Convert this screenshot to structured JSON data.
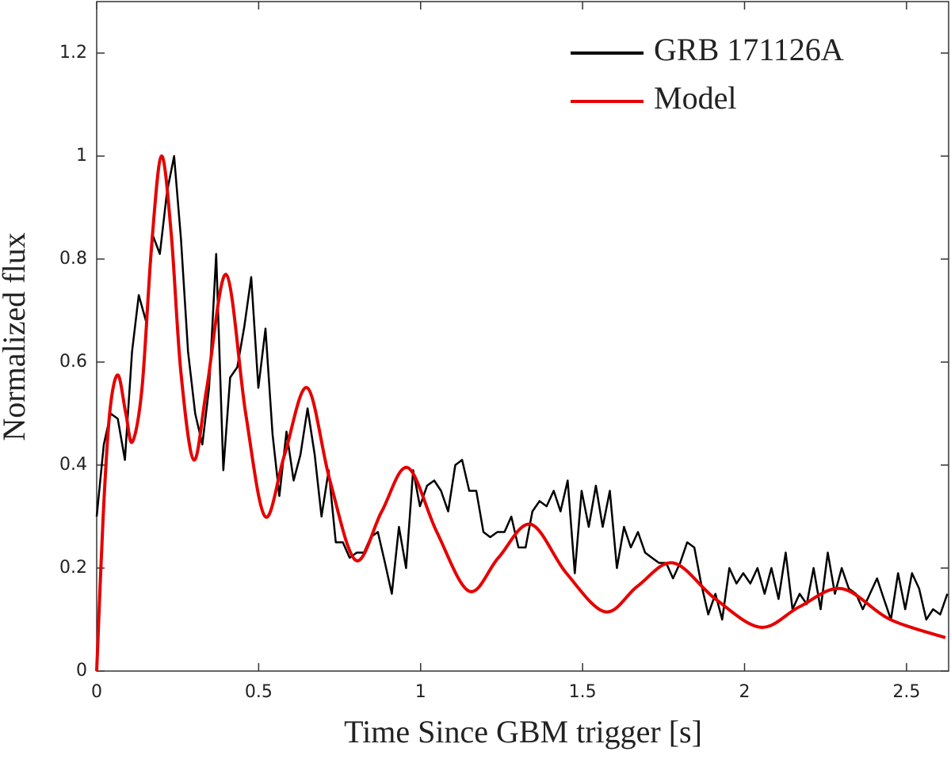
{
  "chart_data": {
    "type": "line",
    "xlabel": "Time Since GBM trigger [s]",
    "ylabel": "Normalized flux",
    "xlim": [
      0,
      2.63
    ],
    "ylim": [
      0,
      1.3
    ],
    "xticks": [
      0,
      0.5,
      1,
      1.5,
      2,
      2.5
    ],
    "yticks": [
      0,
      0.2,
      0.4,
      0.6,
      0.8,
      1,
      1.2
    ],
    "legend": "upper right",
    "series": [
      {
        "name": "GRB 171126A",
        "color": "#000000",
        "smooth": false,
        "x": [
          0,
          0.022,
          0.043,
          0.065,
          0.087,
          0.109,
          0.13,
          0.152,
          0.174,
          0.195,
          0.217,
          0.239,
          0.26,
          0.282,
          0.304,
          0.326,
          0.347,
          0.369,
          0.391,
          0.412,
          0.434,
          0.456,
          0.477,
          0.499,
          0.521,
          0.543,
          0.564,
          0.586,
          0.608,
          0.629,
          0.651,
          0.673,
          0.694,
          0.716,
          0.738,
          0.76,
          0.781,
          0.803,
          0.825,
          0.846,
          0.868,
          0.89,
          0.911,
          0.933,
          0.955,
          0.977,
          0.998,
          1.02,
          1.042,
          1.063,
          1.085,
          1.107,
          1.128,
          1.15,
          1.172,
          1.194,
          1.215,
          1.237,
          1.259,
          1.28,
          1.302,
          1.324,
          1.345,
          1.367,
          1.389,
          1.411,
          1.432,
          1.454,
          1.476,
          1.497,
          1.519,
          1.541,
          1.562,
          1.584,
          1.606,
          1.628,
          1.649,
          1.671,
          1.693,
          1.714,
          1.736,
          1.758,
          1.779,
          1.801,
          1.823,
          1.845,
          1.866,
          1.888,
          1.91,
          1.931,
          1.953,
          1.975,
          1.996,
          2.018,
          2.04,
          2.062,
          2.083,
          2.105,
          2.127,
          2.148,
          2.17,
          2.192,
          2.213,
          2.235,
          2.257,
          2.279,
          2.3,
          2.322,
          2.344,
          2.365,
          2.387,
          2.409,
          2.43,
          2.452,
          2.474,
          2.496,
          2.517,
          2.539,
          2.561,
          2.582,
          2.604,
          2.626
        ],
        "values": [
          0.3,
          0.44,
          0.5,
          0.49,
          0.41,
          0.62,
          0.73,
          0.68,
          0.845,
          0.81,
          0.93,
          1.0,
          0.84,
          0.62,
          0.5,
          0.44,
          0.55,
          0.81,
          0.39,
          0.57,
          0.59,
          0.67,
          0.765,
          0.55,
          0.665,
          0.46,
          0.34,
          0.465,
          0.37,
          0.42,
          0.51,
          0.42,
          0.3,
          0.39,
          0.25,
          0.25,
          0.22,
          0.23,
          0.23,
          0.26,
          0.27,
          0.21,
          0.15,
          0.28,
          0.2,
          0.39,
          0.32,
          0.36,
          0.37,
          0.35,
          0.31,
          0.4,
          0.41,
          0.35,
          0.35,
          0.27,
          0.26,
          0.27,
          0.27,
          0.3,
          0.24,
          0.24,
          0.31,
          0.33,
          0.32,
          0.35,
          0.31,
          0.37,
          0.19,
          0.35,
          0.28,
          0.36,
          0.28,
          0.35,
          0.2,
          0.28,
          0.24,
          0.27,
          0.23,
          0.22,
          0.21,
          0.21,
          0.18,
          0.21,
          0.25,
          0.24,
          0.17,
          0.11,
          0.15,
          0.1,
          0.2,
          0.17,
          0.19,
          0.17,
          0.2,
          0.15,
          0.2,
          0.14,
          0.23,
          0.12,
          0.15,
          0.13,
          0.2,
          0.12,
          0.23,
          0.15,
          0.2,
          0.16,
          0.15,
          0.12,
          0.15,
          0.18,
          0.14,
          0.1,
          0.19,
          0.12,
          0.19,
          0.16,
          0.1,
          0.12,
          0.11,
          0.15
        ]
      },
      {
        "name": "Model",
        "color": "#e60000",
        "smooth": true,
        "x": [
          0,
          0.02,
          0.04,
          0.065,
          0.09,
          0.11,
          0.14,
          0.17,
          0.2,
          0.23,
          0.26,
          0.3,
          0.34,
          0.4,
          0.46,
          0.52,
          0.58,
          0.65,
          0.72,
          0.8,
          0.88,
          0.96,
          1.05,
          1.15,
          1.24,
          1.34,
          1.45,
          1.57,
          1.67,
          1.78,
          1.91,
          2.05,
          2.17,
          2.3,
          2.45,
          2.62
        ],
        "values": [
          0,
          0.3,
          0.5,
          0.575,
          0.5,
          0.445,
          0.55,
          0.83,
          1.0,
          0.85,
          0.58,
          0.41,
          0.55,
          0.77,
          0.5,
          0.3,
          0.42,
          0.55,
          0.37,
          0.215,
          0.31,
          0.395,
          0.27,
          0.155,
          0.22,
          0.285,
          0.19,
          0.115,
          0.165,
          0.21,
          0.14,
          0.085,
          0.125,
          0.16,
          0.1,
          0.065
        ]
      }
    ]
  }
}
